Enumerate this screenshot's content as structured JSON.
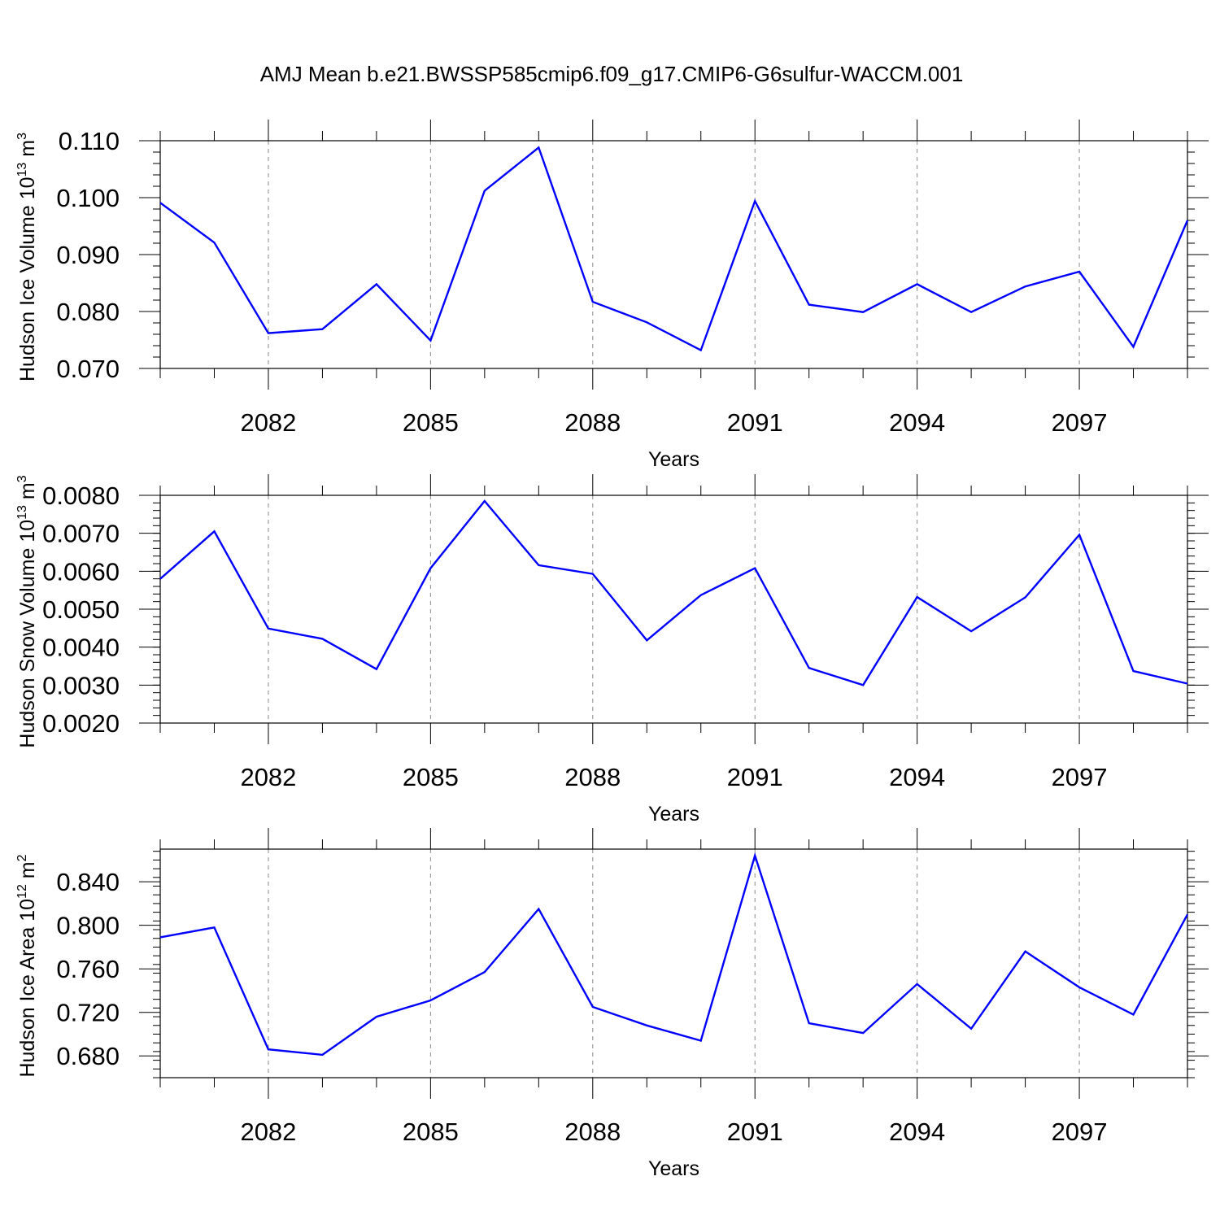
{
  "title": "AMJ Mean b.e21.BWSSP585cmip6.f09_g17.CMIP6-G6sulfur-WACCM.001",
  "series_color": "#0000ff",
  "chart_data": [
    {
      "type": "line",
      "ylabel": "Hudson Ice Volume 10^13 m^3",
      "ylabel_parts": {
        "base": "Hudson Ice Volume 10",
        "exp1": "13",
        "mid": " m",
        "exp2": "3"
      },
      "xlabel": "Years",
      "x": [
        2080,
        2081,
        2082,
        2083,
        2084,
        2085,
        2086,
        2087,
        2088,
        2089,
        2090,
        2091,
        2092,
        2093,
        2094,
        2095,
        2096,
        2097,
        2098,
        2099
      ],
      "values": [
        0.0991,
        0.0921,
        0.0762,
        0.0769,
        0.0848,
        0.0749,
        0.1012,
        0.1088,
        0.0817,
        0.0781,
        0.0732,
        0.0994,
        0.0812,
        0.0799,
        0.0848,
        0.0799,
        0.0844,
        0.087,
        0.0738,
        0.096
      ],
      "xlim": [
        2080,
        2099
      ],
      "ylim": [
        0.07,
        0.11
      ],
      "xticks": [
        2082,
        2085,
        2088,
        2091,
        2094,
        2097
      ],
      "xtick_labels": [
        "2082",
        "2085",
        "2088",
        "2091",
        "2094",
        "2097"
      ],
      "yticks": [
        0.07,
        0.08,
        0.09,
        0.1,
        0.11
      ],
      "ytick_labels": [
        "0.070",
        "0.080",
        "0.090",
        "0.100",
        "0.110"
      ],
      "y_minor_step": 0.002,
      "grid": "vertical dashed at major x ticks"
    },
    {
      "type": "line",
      "ylabel": "Hudson Snow Volume 10^13 m^3",
      "ylabel_parts": {
        "base": "Hudson Snow Volume 10",
        "exp1": "13",
        "mid": " m",
        "exp2": "3"
      },
      "xlabel": "Years",
      "x": [
        2080,
        2081,
        2082,
        2083,
        2084,
        2085,
        2086,
        2087,
        2088,
        2089,
        2090,
        2091,
        2092,
        2093,
        2094,
        2095,
        2096,
        2097,
        2098,
        2099
      ],
      "values": [
        0.0058,
        0.00705,
        0.00449,
        0.00422,
        0.00342,
        0.00608,
        0.00785,
        0.00616,
        0.00593,
        0.00418,
        0.00537,
        0.00608,
        0.00345,
        0.003,
        0.00532,
        0.00442,
        0.00531,
        0.00696,
        0.00337,
        0.00304
      ],
      "xlim": [
        2080,
        2099
      ],
      "ylim": [
        0.002,
        0.008
      ],
      "xticks": [
        2082,
        2085,
        2088,
        2091,
        2094,
        2097
      ],
      "xtick_labels": [
        "2082",
        "2085",
        "2088",
        "2091",
        "2094",
        "2097"
      ],
      "yticks": [
        0.002,
        0.003,
        0.004,
        0.005,
        0.006,
        0.007,
        0.008
      ],
      "ytick_labels": [
        "0.0020",
        "0.0030",
        "0.0040",
        "0.0050",
        "0.0060",
        "0.0070",
        "0.0080"
      ],
      "y_minor_step": 0.0002,
      "grid": "vertical dashed at major x ticks"
    },
    {
      "type": "line",
      "ylabel": "Hudson Ice Area 10^12 m^2",
      "ylabel_parts": {
        "base": "Hudson Ice Area 10",
        "exp1": "12",
        "mid": " m",
        "exp2": "2"
      },
      "xlabel": "Years",
      "x": [
        2080,
        2081,
        2082,
        2083,
        2084,
        2085,
        2086,
        2087,
        2088,
        2089,
        2090,
        2091,
        2092,
        2093,
        2094,
        2095,
        2096,
        2097,
        2098,
        2099
      ],
      "values": [
        0.789,
        0.798,
        0.686,
        0.681,
        0.716,
        0.731,
        0.757,
        0.815,
        0.725,
        0.708,
        0.694,
        0.864,
        0.71,
        0.701,
        0.746,
        0.705,
        0.776,
        0.743,
        0.718,
        0.81
      ],
      "xlim": [
        2080,
        2099
      ],
      "ylim": [
        0.66,
        0.87
      ],
      "xticks": [
        2082,
        2085,
        2088,
        2091,
        2094,
        2097
      ],
      "xtick_labels": [
        "2082",
        "2085",
        "2088",
        "2091",
        "2094",
        "2097"
      ],
      "yticks": [
        0.68,
        0.72,
        0.76,
        0.8,
        0.84
      ],
      "ytick_labels": [
        "0.680",
        "0.720",
        "0.760",
        "0.800",
        "0.840"
      ],
      "y_minor_step": 0.008,
      "grid": "vertical dashed at major x ticks"
    }
  ]
}
